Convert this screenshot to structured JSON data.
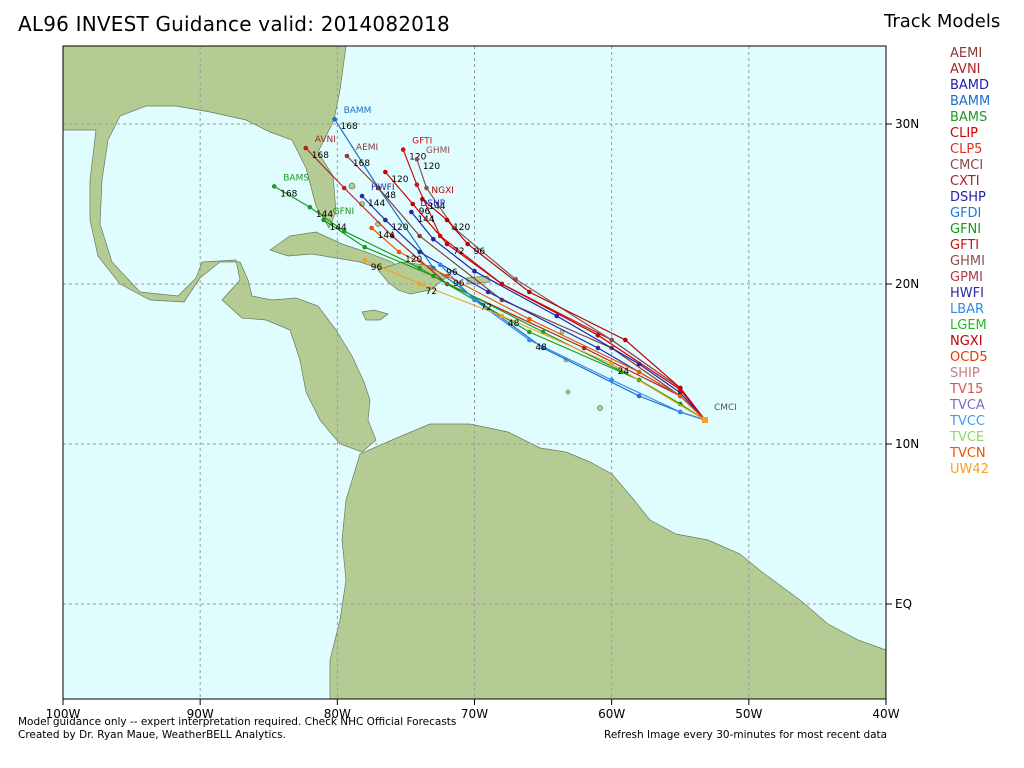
{
  "title": "AL96 INVEST Guidance valid: 2014082018",
  "legend": {
    "title": "Track Models",
    "models": [
      {
        "name": "AEMI",
        "color": "#8b3a3a"
      },
      {
        "name": "AVNI",
        "color": "#b22222"
      },
      {
        "name": "BAMD",
        "color": "#1f1fa8"
      },
      {
        "name": "BAMM",
        "color": "#1f6fc8"
      },
      {
        "name": "BAMS",
        "color": "#1e9a1e"
      },
      {
        "name": "CLIP",
        "color": "#cc0000"
      },
      {
        "name": "CLP5",
        "color": "#e0301e"
      },
      {
        "name": "CMCI",
        "color": "#8b4a4a"
      },
      {
        "name": "CXTI",
        "color": "#b01c2e"
      },
      {
        "name": "DSHP",
        "color": "#2222aa"
      },
      {
        "name": "GFDI",
        "color": "#2277dd"
      },
      {
        "name": "GFNI",
        "color": "#1a9a1a"
      },
      {
        "name": "GFTI",
        "color": "#cc1111"
      },
      {
        "name": "GHMI",
        "color": "#8b5050"
      },
      {
        "name": "GPMI",
        "color": "#b03a48"
      },
      {
        "name": "HWFI",
        "color": "#2a2aa0"
      },
      {
        "name": "LBAR",
        "color": "#3388ee"
      },
      {
        "name": "LGEM",
        "color": "#22bb22"
      },
      {
        "name": "NGXI",
        "color": "#bb0000"
      },
      {
        "name": "OCD5",
        "color": "#ee3300"
      },
      {
        "name": "SHIP",
        "color": "#c08080"
      },
      {
        "name": "TV15",
        "color": "#e05050"
      },
      {
        "name": "TVCA",
        "color": "#7070c0"
      },
      {
        "name": "TVCC",
        "color": "#4499ee"
      },
      {
        "name": "TVCE",
        "color": "#88dd66"
      },
      {
        "name": "TVCN",
        "color": "#ee5500"
      },
      {
        "name": "UW42",
        "color": "#f4a020"
      }
    ]
  },
  "map": {
    "lon_ticks": [
      "100W",
      "90W",
      "80W",
      "70W",
      "60W",
      "50W",
      "40W"
    ],
    "lat_ticks": [
      "30N",
      "20N",
      "10N",
      "EQ"
    ],
    "ocean_color": "#dffdff",
    "start_label": "CMCI",
    "start_point": {
      "lon": -53.2,
      "lat": 11.5
    },
    "tracks": [
      {
        "model": "BAMM",
        "end_label": "BAMM",
        "hours": [
          168,
          48
        ],
        "pts": [
          [
            -80.2,
            30.3
          ],
          [
            -77,
            26
          ],
          [
            -73,
            21
          ],
          [
            -65,
            16
          ],
          [
            -58,
            13
          ],
          [
            -55,
            12
          ]
        ]
      },
      {
        "model": "AVNI",
        "end_label": "AVNI",
        "hours": [
          168
        ],
        "pts": [
          [
            -82.3,
            28.5
          ],
          [
            -79.5,
            26
          ],
          [
            -76,
            23
          ],
          [
            -72,
            20
          ],
          [
            -62,
            16
          ],
          [
            -55,
            13
          ]
        ]
      },
      {
        "model": "AEMI",
        "end_label": "AEMI",
        "hours": [
          168
        ],
        "pts": [
          [
            -79.3,
            28
          ],
          [
            -77,
            26
          ],
          [
            -74,
            23
          ],
          [
            -68,
            19
          ],
          [
            -60,
            16
          ],
          [
            -55,
            13
          ]
        ]
      },
      {
        "model": "BAMS",
        "end_label": "BAMS",
        "hours": [
          168,
          144
        ],
        "pts": [
          [
            -84.6,
            26.1
          ],
          [
            -82,
            24.8
          ],
          [
            -79.5,
            23.3
          ],
          [
            -74,
            21
          ],
          [
            -66,
            17
          ],
          [
            -58,
            14
          ],
          [
            -55,
            12.5
          ]
        ]
      },
      {
        "model": "GFNI",
        "end_label": "GFNI",
        "hours": [
          144
        ],
        "pts": [
          [
            -81,
            24
          ],
          [
            -78,
            22.3
          ],
          [
            -73,
            20.5
          ],
          [
            -65,
            17
          ],
          [
            -58,
            14
          ],
          [
            -55,
            12.5
          ]
        ]
      },
      {
        "model": "GFTI",
        "end_label": "GFTI",
        "hours": [
          120
        ],
        "pts": [
          [
            -75.2,
            28.4
          ],
          [
            -74.2,
            26.2
          ],
          [
            -72.5,
            23
          ],
          [
            -68,
            20
          ],
          [
            -60,
            16.5
          ],
          [
            -55,
            13.5
          ]
        ]
      },
      {
        "model": "GHMI",
        "end_label": "GHMI",
        "hours": [
          120
        ],
        "pts": [
          [
            -74.2,
            27.8
          ],
          [
            -73.5,
            26
          ],
          [
            -71.5,
            23.5
          ],
          [
            -67,
            20.3
          ],
          [
            -60,
            16.5
          ],
          [
            -55,
            13.5
          ]
        ]
      },
      {
        "model": "NGXI",
        "end_label": "NGXI",
        "hours": [
          144,
          120,
          96
        ],
        "pts": [
          [
            -73.8,
            25.3
          ],
          [
            -72,
            24
          ],
          [
            -70.5,
            22.5
          ],
          [
            -66,
            19.5
          ],
          [
            -59,
            16.5
          ],
          [
            -55,
            13.5
          ]
        ]
      },
      {
        "model": "DSHP",
        "end_label": "DSHP",
        "hours": [
          144
        ],
        "pts": [
          [
            -74.6,
            24.5
          ],
          [
            -73,
            22.8
          ],
          [
            -70,
            20.8
          ],
          [
            -64,
            18
          ],
          [
            -58,
            15
          ],
          [
            -55,
            13.2
          ]
        ]
      },
      {
        "model": "HWFI",
        "end_label": "HWFI",
        "hours": [
          144,
          120
        ],
        "pts": [
          [
            -78.2,
            25.5
          ],
          [
            -76.5,
            24
          ],
          [
            -74,
            22
          ],
          [
            -69,
            19.5
          ],
          [
            -61,
            16
          ],
          [
            -55,
            13
          ]
        ]
      },
      {
        "model": "CLIP",
        "end_label": "",
        "hours": [
          120,
          96,
          72
        ],
        "pts": [
          [
            -76.5,
            27
          ],
          [
            -74.5,
            25
          ],
          [
            -72,
            22.5
          ],
          [
            -68,
            20
          ],
          [
            -61,
            16.8
          ],
          [
            -55,
            13.4
          ]
        ]
      },
      {
        "model": "LBAR",
        "end_label": "",
        "hours": [
          96,
          72,
          48
        ],
        "pts": [
          [
            -72.5,
            21.2
          ],
          [
            -70,
            19
          ],
          [
            -66,
            16.5
          ],
          [
            -60,
            14
          ],
          [
            -55,
            12
          ]
        ]
      },
      {
        "model": "TVCN",
        "end_label": "",
        "hours": [
          144,
          120,
          96
        ],
        "pts": [
          [
            -77.5,
            23.5
          ],
          [
            -75.5,
            22
          ],
          [
            -72,
            20.5
          ],
          [
            -66,
            17.8
          ],
          [
            -58,
            14.5
          ],
          [
            -55,
            13
          ]
        ]
      },
      {
        "model": "UW42",
        "end_label": "",
        "hours": [
          96,
          72,
          48,
          24
        ],
        "pts": [
          [
            -78,
            21.5
          ],
          [
            -74,
            20
          ],
          [
            -68,
            18
          ],
          [
            -60,
            15
          ],
          [
            -53.2,
            11.5
          ]
        ]
      }
    ]
  },
  "footer": {
    "line1": "Model guidance only -- expert interpretation required.  Check NHC Official Forecasts",
    "line2": "Created by Dr. Ryan Maue, WeatherBELL Analytics.",
    "refresh": "Refresh Image every 30-minutes for most recent data"
  }
}
